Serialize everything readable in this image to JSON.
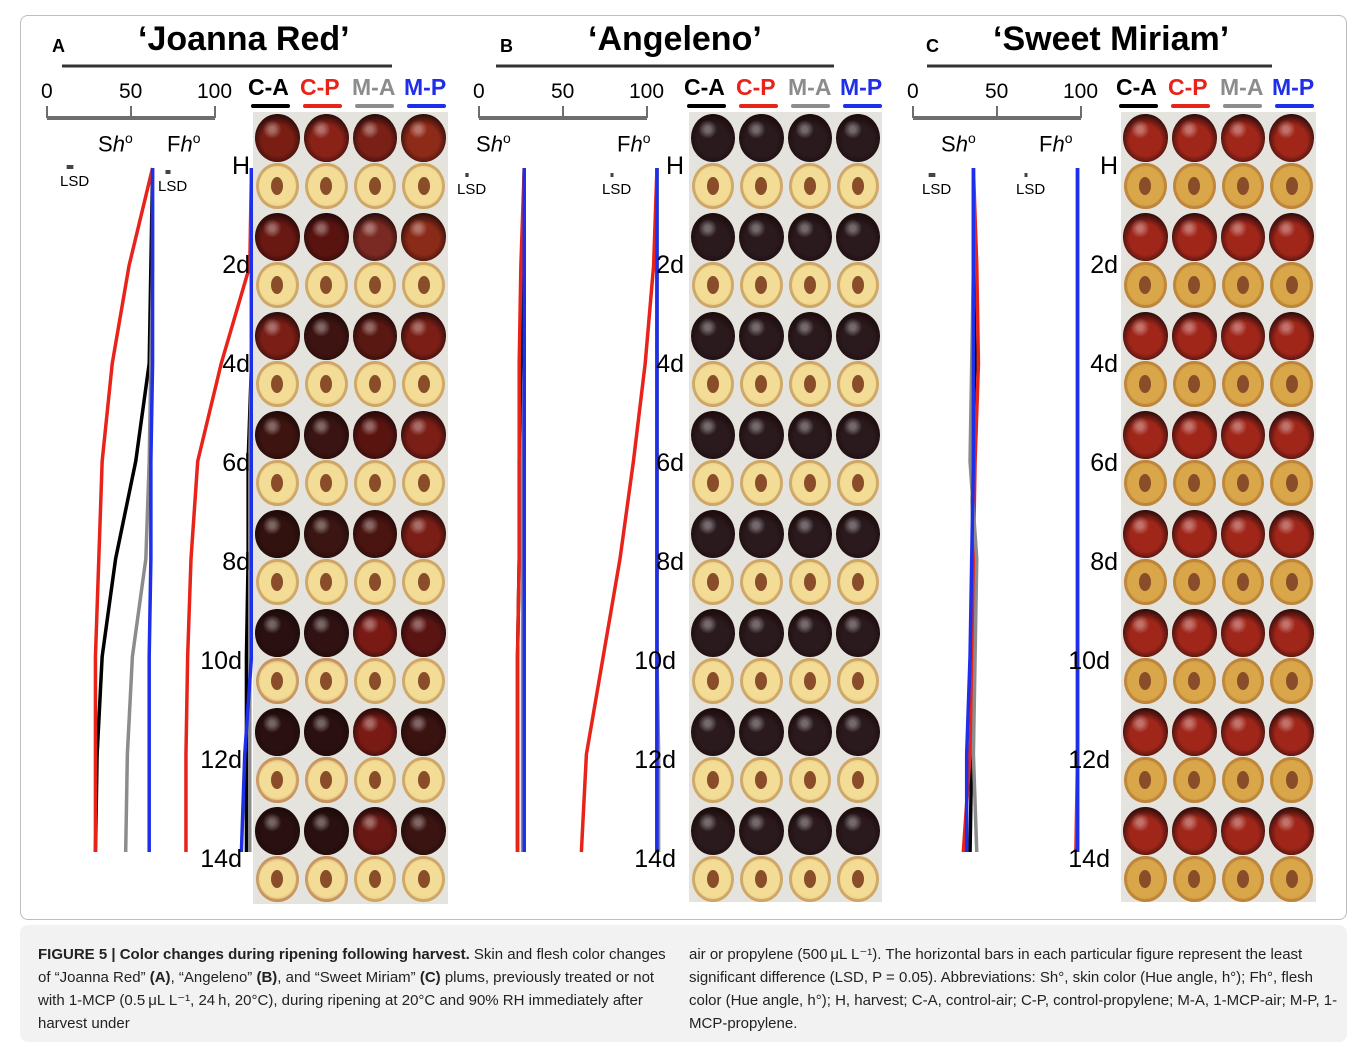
{
  "panels": [
    {
      "letter": "A",
      "title": "‘Joanna Red’"
    },
    {
      "letter": "B",
      "title": "‘Angeleno’"
    },
    {
      "letter": "C",
      "title": "‘Sweet Miriam’"
    }
  ],
  "scale_ticks": [
    "0",
    "50",
    "100"
  ],
  "treatments": [
    {
      "label": "C-A",
      "color": "#000000"
    },
    {
      "label": "C-P",
      "color": "#e8231a"
    },
    {
      "label": "M-A",
      "color": "#8c8c8c"
    },
    {
      "label": "M-P",
      "color": "#1f2ee8"
    }
  ],
  "hue_labels": {
    "skin_prefix": "S",
    "flesh_prefix": "F",
    "symbol": "h",
    "degree": "o"
  },
  "lsd_label": "LSD",
  "days": [
    "H",
    "2d",
    "4d",
    "6d",
    "8d",
    "10d",
    "12d",
    "14d"
  ],
  "chart_data": [
    {
      "type": "line",
      "title": "‘Joanna Red’",
      "xlim": [
        0,
        100
      ],
      "y_categories": [
        "H",
        "2d",
        "4d",
        "6d",
        "8d",
        "10d",
        "12d",
        "14d"
      ],
      "series": [
        {
          "name": "C-A",
          "skin": [
            42,
            41,
            40,
            32,
            20,
            12,
            9,
            8
          ],
          "flesh": [
            86,
            86,
            86,
            84,
            84,
            83,
            83,
            83
          ]
        },
        {
          "name": "C-P",
          "skin": [
            42,
            28,
            18,
            12,
            10,
            8,
            8,
            8
          ],
          "flesh": [
            86,
            85,
            68,
            54,
            50,
            48,
            47,
            47
          ]
        },
        {
          "name": "M-A",
          "skin": [
            42,
            42,
            41,
            40,
            38,
            30,
            27,
            26
          ],
          "flesh": [
            86,
            86,
            86,
            85,
            85,
            85,
            85,
            85
          ]
        },
        {
          "name": "M-P",
          "skin": [
            42,
            42,
            42,
            41,
            41,
            40,
            40,
            40
          ],
          "flesh": [
            86,
            86,
            86,
            86,
            86,
            86,
            82,
            80
          ]
        }
      ],
      "lsd": {
        "skin": 4,
        "flesh": 3
      }
    },
    {
      "type": "line",
      "title": "‘Angeleno’",
      "xlim": [
        0,
        100
      ],
      "y_categories": [
        "H",
        "2d",
        "4d",
        "6d",
        "8d",
        "10d",
        "12d",
        "14d"
      ],
      "series": [
        {
          "name": "C-A",
          "skin": [
            18,
            17,
            16,
            15,
            15,
            14,
            14,
            14
          ],
          "flesh": [
            97,
            97,
            97,
            97,
            97,
            97,
            97,
            97
          ]
        },
        {
          "name": "C-P",
          "skin": [
            18,
            16,
            15,
            15,
            15,
            14,
            14,
            14
          ],
          "flesh": [
            97,
            95,
            90,
            83,
            75,
            65,
            55,
            52
          ]
        },
        {
          "name": "M-A",
          "skin": [
            18,
            18,
            18,
            17,
            17,
            17,
            17,
            17
          ],
          "flesh": [
            97,
            97,
            97,
            97,
            97,
            97,
            98,
            98
          ]
        },
        {
          "name": "M-P",
          "skin": [
            18,
            18,
            18,
            18,
            18,
            18,
            18,
            18
          ],
          "flesh": [
            97,
            97,
            97,
            97,
            97,
            97,
            97,
            97
          ]
        }
      ],
      "lsd": {
        "skin": 2,
        "flesh": 1
      }
    },
    {
      "type": "line",
      "title": "‘Sweet Miriam’",
      "xlim": [
        0,
        100
      ],
      "y_categories": [
        "H",
        "2d",
        "4d",
        "6d",
        "8d",
        "10d",
        "12d",
        "14d"
      ],
      "series": [
        {
          "name": "C-A",
          "skin": [
            30,
            30,
            31,
            29,
            30,
            29,
            29,
            28
          ],
          "flesh": [
            92,
            92,
            92,
            92,
            92,
            92,
            92,
            92
          ]
        },
        {
          "name": "C-P",
          "skin": [
            30,
            32,
            33,
            31,
            30,
            30,
            28,
            24
          ],
          "flesh": [
            92,
            92,
            92,
            92,
            92,
            92,
            92,
            91
          ]
        },
        {
          "name": "M-A",
          "skin": [
            30,
            30,
            29,
            28,
            32,
            31,
            30,
            32
          ],
          "flesh": [
            92,
            92,
            92,
            92,
            92,
            92,
            92,
            92
          ]
        },
        {
          "name": "M-P",
          "skin": [
            30,
            30,
            30,
            30,
            29,
            28,
            26,
            26
          ],
          "flesh": [
            92,
            92,
            92,
            92,
            92,
            92,
            92,
            92
          ]
        }
      ],
      "lsd": {
        "skin": 4,
        "flesh": 1
      }
    }
  ],
  "caption": {
    "fig_label": "FIGURE 5 | Color changes during ripening following harvest.",
    "text1": " Skin and flesh color changes of “Joanna Red” ",
    "a": "(A)",
    "text2": ", “Angeleno” ",
    "b": "(B)",
    "text3": ", and “Sweet Miriam” ",
    "c": "(C)",
    "text4": " plums, previously treated or not with 1-MCP (0.5 μL L⁻¹, 24 h, 20°C), during ripening at 20°C and 90% RH immediately after harvest under",
    "right": "air or propylene (500 μL L⁻¹). The horizontal bars in each particular figure represent the least significant difference (LSD, P = 0.05). Abbreviations: Sh°, skin color (Hue angle, h°); Fh°, flesh color (Hue angle, h°); H, harvest; C-A, control-air; C-P, control-propylene; M-A, 1-MCP-air; M-P, 1-MCP-propylene."
  },
  "photo_colors": {
    "joanna_skin": [
      [
        "#7a1e14",
        "#8a2218",
        "#7b2016",
        "#8e2a18"
      ],
      [
        "#6a1812",
        "#5a1410",
        "#7a2a22",
        "#8a2a18"
      ],
      [
        "#7a1e16",
        "#3e1412",
        "#5a1812",
        "#7a1e16"
      ],
      [
        "#3e1410",
        "#3a1412",
        "#5a1410",
        "#7a1e16"
      ],
      [
        "#32120f",
        "#3a1512",
        "#4a1410",
        "#7a1e16"
      ],
      [
        "#2a1010",
        "#301212",
        "#7a1a14",
        "#5a1412"
      ],
      [
        "#2a1010",
        "#2a1010",
        "#7a1a14",
        "#3a1210"
      ],
      [
        "#2a1010",
        "#2a1010",
        "#6a1814",
        "#3a1410"
      ]
    ],
    "angeleno_skin": "#2a1a1e",
    "miriam_skin": "#a0261a"
  }
}
